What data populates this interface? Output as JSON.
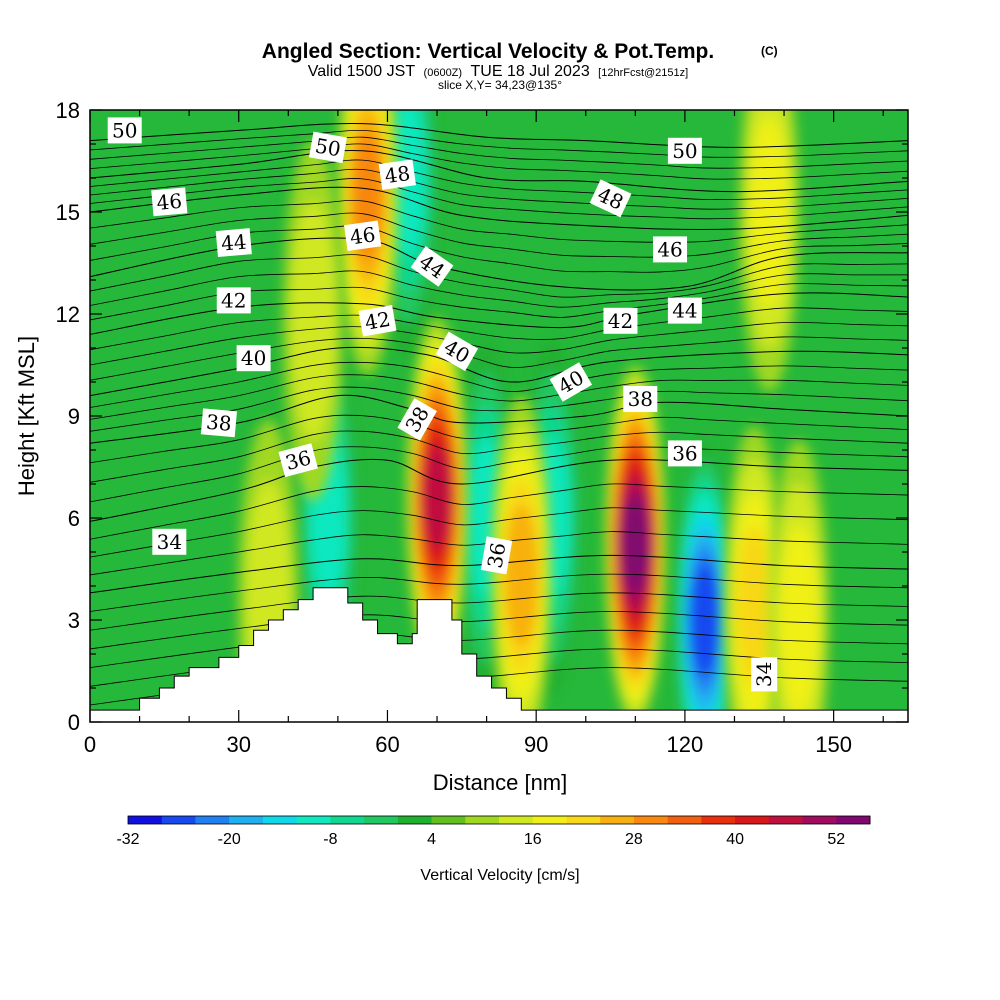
{
  "header": {
    "title": "Angled Section: Vertical Velocity & Pot.Temp.",
    "copyright": "(C)",
    "valid_prefix": "Valid 1500 JST",
    "valid_zulu": "(0600Z)",
    "valid_date": "TUE 18 Jul 2023",
    "forecast": "[12hrFcst@2151z]",
    "slice": "slice X,Y= 34,23@135°"
  },
  "chart_data": {
    "type": "heatmap",
    "title": "Angled Section: Vertical Velocity & Pot.Temp.",
    "xlabel": "Distance [nm]",
    "ylabel": "Height [Kft MSL]",
    "xlim": [
      0,
      165
    ],
    "ylim": [
      0,
      18
    ],
    "x_ticks": [
      0,
      30,
      60,
      90,
      120,
      150
    ],
    "y_ticks": [
      0,
      3,
      6,
      9,
      12,
      15,
      18
    ],
    "colorbar": {
      "label": "Vertical Velocity [cm/s]",
      "min": -32,
      "max": 56,
      "step": 4,
      "tick_labels": [
        -32,
        -20,
        -8,
        4,
        16,
        28,
        40,
        52
      ],
      "colors": [
        "#1010e0",
        "#1848f0",
        "#2080f0",
        "#20b0f0",
        "#10d8e8",
        "#10e8c0",
        "#10d890",
        "#20c860",
        "#20b030",
        "#60c020",
        "#a0d820",
        "#d0e820",
        "#f0f018",
        "#f8d818",
        "#f8b010",
        "#f88810",
        "#f06010",
        "#e83010",
        "#d81818",
        "#c01040",
        "#a00c60",
        "#800870"
      ]
    },
    "terrain": [
      [
        0,
        0.35
      ],
      [
        10,
        0.35
      ],
      [
        10,
        0.7
      ],
      [
        14,
        0.7
      ],
      [
        14,
        1.0
      ],
      [
        17,
        1.0
      ],
      [
        17,
        1.35
      ],
      [
        20,
        1.35
      ],
      [
        20,
        1.6
      ],
      [
        26,
        1.6
      ],
      [
        26,
        1.9
      ],
      [
        30,
        1.9
      ],
      [
        30,
        2.25
      ],
      [
        33,
        2.25
      ],
      [
        33,
        2.7
      ],
      [
        36,
        2.7
      ],
      [
        36,
        3.0
      ],
      [
        39,
        3.0
      ],
      [
        39,
        3.3
      ],
      [
        42,
        3.3
      ],
      [
        42,
        3.6
      ],
      [
        45,
        3.6
      ],
      [
        45,
        3.95
      ],
      [
        52,
        3.95
      ],
      [
        52,
        3.5
      ],
      [
        55,
        3.5
      ],
      [
        55,
        3.0
      ],
      [
        58,
        3.0
      ],
      [
        58,
        2.6
      ],
      [
        62,
        2.6
      ],
      [
        62,
        2.3
      ],
      [
        65,
        2.3
      ],
      [
        65,
        2.6
      ],
      [
        66,
        2.6
      ],
      [
        66,
        3.6
      ],
      [
        73,
        3.6
      ],
      [
        73,
        3.0
      ],
      [
        75,
        3.0
      ],
      [
        75,
        2.0
      ],
      [
        78,
        2.0
      ],
      [
        78,
        1.35
      ],
      [
        81,
        1.35
      ],
      [
        81,
        1.0
      ],
      [
        84,
        1.0
      ],
      [
        84,
        0.7
      ],
      [
        87,
        0.7
      ],
      [
        87,
        0.35
      ],
      [
        165,
        0.35
      ]
    ],
    "updrafts": [
      {
        "x": 70,
        "y": 6.6,
        "value": 46
      },
      {
        "x": 110,
        "y": 5.2,
        "value": 56
      },
      {
        "x": 87,
        "y": 4.3,
        "value": 26
      },
      {
        "x": 56,
        "y": 15.5,
        "value": 30
      },
      {
        "x": 134,
        "y": 3.4,
        "value": 22
      },
      {
        "x": 143,
        "y": 3.0,
        "value": 18
      },
      {
        "x": 137,
        "y": 15.0,
        "value": 18
      },
      {
        "x": 45,
        "y": 11.8,
        "value": 16
      },
      {
        "x": 36,
        "y": 3.6,
        "value": 16
      }
    ],
    "downdrafts": [
      {
        "x": 124,
        "y": 3.0,
        "value": -28
      },
      {
        "x": 80,
        "y": 6.0,
        "value": -10
      },
      {
        "x": 93,
        "y": 6.0,
        "value": -12
      },
      {
        "x": 64,
        "y": 16.0,
        "value": -12
      },
      {
        "x": 48,
        "y": 6.0,
        "value": -10
      }
    ],
    "isentropes": [
      {
        "value": 34,
        "points": [
          [
            0,
            3.8
          ],
          [
            30,
            4.4
          ],
          [
            55,
            4.8
          ],
          [
            75,
            4.6
          ],
          [
            105,
            4.9
          ],
          [
            140,
            4.6
          ],
          [
            165,
            4.5
          ]
        ]
      },
      {
        "value": 36,
        "points": [
          [
            0,
            5.9
          ],
          [
            30,
            6.8
          ],
          [
            45,
            7.5
          ],
          [
            60,
            7.7
          ],
          [
            75,
            7.0
          ],
          [
            105,
            7.7
          ],
          [
            140,
            7.5
          ],
          [
            165,
            7.4
          ]
        ]
      },
      {
        "value": 38,
        "points": [
          [
            0,
            8.2
          ],
          [
            30,
            8.8
          ],
          [
            50,
            9.6
          ],
          [
            65,
            9.2
          ],
          [
            75,
            8.8
          ],
          [
            100,
            9.0
          ],
          [
            115,
            9.4
          ],
          [
            140,
            9.2
          ],
          [
            165,
            9.0
          ]
        ]
      },
      {
        "value": 40,
        "points": [
          [
            0,
            9.6
          ],
          [
            30,
            10.4
          ],
          [
            50,
            11.0
          ],
          [
            68,
            10.8
          ],
          [
            85,
            10.0
          ],
          [
            105,
            10.6
          ],
          [
            140,
            10.9
          ],
          [
            165,
            10.8
          ]
        ]
      },
      {
        "value": 42,
        "points": [
          [
            0,
            11.4
          ],
          [
            30,
            12.2
          ],
          [
            55,
            12.3
          ],
          [
            70,
            11.9
          ],
          [
            95,
            11.6
          ],
          [
            110,
            12.0
          ],
          [
            140,
            12.6
          ],
          [
            165,
            12.5
          ]
        ]
      },
      {
        "value": 44,
        "points": [
          [
            0,
            13.1
          ],
          [
            30,
            14.0
          ],
          [
            55,
            14.2
          ],
          [
            70,
            13.4
          ],
          [
            95,
            12.8
          ],
          [
            120,
            12.8
          ],
          [
            140,
            13.7
          ],
          [
            165,
            13.8
          ]
        ]
      },
      {
        "value": 46,
        "points": [
          [
            0,
            15.0
          ],
          [
            30,
            15.5
          ],
          [
            55,
            15.7
          ],
          [
            75,
            14.9
          ],
          [
            100,
            14.6
          ],
          [
            130,
            14.5
          ],
          [
            165,
            14.9
          ]
        ]
      },
      {
        "value": 48,
        "points": [
          [
            0,
            16.0
          ],
          [
            30,
            16.4
          ],
          [
            55,
            16.8
          ],
          [
            80,
            16.0
          ],
          [
            100,
            15.9
          ],
          [
            130,
            15.6
          ],
          [
            165,
            15.9
          ]
        ]
      },
      {
        "value": 50,
        "points": [
          [
            0,
            17.1
          ],
          [
            30,
            17.4
          ],
          [
            55,
            17.6
          ],
          [
            80,
            17.2
          ],
          [
            100,
            17.1
          ],
          [
            130,
            16.9
          ],
          [
            165,
            17.1
          ]
        ]
      }
    ],
    "contour_labels": [
      {
        "text": "50",
        "x": 7,
        "y": 17.4,
        "angle": 0
      },
      {
        "text": "50",
        "x": 48,
        "y": 16.9,
        "angle": 10
      },
      {
        "text": "48",
        "x": 62,
        "y": 16.1,
        "angle": -8
      },
      {
        "text": "46",
        "x": 16,
        "y": 15.3,
        "angle": -5
      },
      {
        "text": "48",
        "x": 105,
        "y": 15.4,
        "angle": 25
      },
      {
        "text": "50",
        "x": 120,
        "y": 16.8,
        "angle": 0
      },
      {
        "text": "46",
        "x": 55,
        "y": 14.3,
        "angle": -8
      },
      {
        "text": "44",
        "x": 29,
        "y": 14.1,
        "angle": -5
      },
      {
        "text": "44",
        "x": 69,
        "y": 13.4,
        "angle": 35
      },
      {
        "text": "46",
        "x": 117,
        "y": 13.9,
        "angle": 0
      },
      {
        "text": "42",
        "x": 29,
        "y": 12.4,
        "angle": 0
      },
      {
        "text": "42",
        "x": 58,
        "y": 11.8,
        "angle": -10
      },
      {
        "text": "42",
        "x": 107,
        "y": 11.8,
        "angle": 0
      },
      {
        "text": "44",
        "x": 120,
        "y": 12.1,
        "angle": 0
      },
      {
        "text": "40",
        "x": 33,
        "y": 10.7,
        "angle": 0
      },
      {
        "text": "40",
        "x": 74,
        "y": 10.9,
        "angle": 30
      },
      {
        "text": "40",
        "x": 97,
        "y": 10.0,
        "angle": -30
      },
      {
        "text": "38",
        "x": 26,
        "y": 8.8,
        "angle": 5
      },
      {
        "text": "38",
        "x": 66,
        "y": 8.9,
        "angle": -60
      },
      {
        "text": "38",
        "x": 111,
        "y": 9.5,
        "angle": 0
      },
      {
        "text": "36",
        "x": 42,
        "y": 7.7,
        "angle": -15
      },
      {
        "text": "36",
        "x": 120,
        "y": 7.9,
        "angle": 0
      },
      {
        "text": "34",
        "x": 16,
        "y": 5.3,
        "angle": 0
      },
      {
        "text": "36",
        "x": 82,
        "y": 4.9,
        "angle": -80
      },
      {
        "text": "34",
        "x": 136,
        "y": 1.4,
        "angle": -90
      }
    ]
  }
}
